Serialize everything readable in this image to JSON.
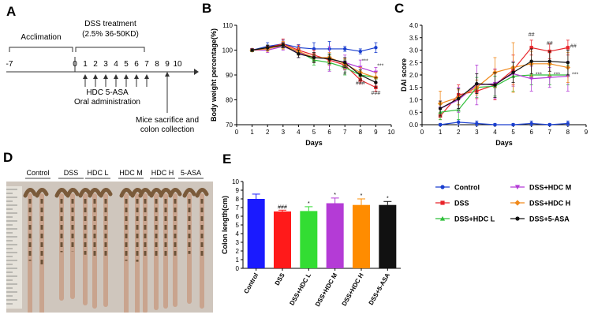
{
  "panels": {
    "A": {
      "letter": "A",
      "acclimation": "Acclimation",
      "dss_title": "DSS treatment",
      "dss_detail": "(2.5% 36-50KD)",
      "day_ticks": [
        "-7",
        "0",
        "1",
        "2",
        "3",
        "4",
        "5",
        "6",
        "7",
        "8",
        "9",
        "10"
      ],
      "arrow_days": [
        1,
        2,
        3,
        4,
        5,
        6,
        7
      ],
      "hdc_label": "HDC 5-ASA",
      "oral_label": "Oral administration",
      "sacrifice_line1": "Mice sacrifice and",
      "sacrifice_line2": "colon collection"
    },
    "D": {
      "letter": "D",
      "group_labels": [
        "Control",
        "DSS",
        "HDC L",
        "HDC M",
        "HDC H",
        "5-ASA"
      ]
    }
  },
  "legend": [
    {
      "label": "Control",
      "color": "#1a3fcf",
      "marker": "circle"
    },
    {
      "label": "DSS+HDC M",
      "color": "#b43bd6",
      "marker": "triangle-down"
    },
    {
      "label": "DSS",
      "color": "#e8242a",
      "marker": "square"
    },
    {
      "label": "DSS+HDC H",
      "color": "#f08a1c",
      "marker": "diamond"
    },
    {
      "label": "DSS+HDC L",
      "color": "#2fbf3a",
      "marker": "triangle-up"
    },
    {
      "label": "DSS+5-ASA",
      "color": "#111111",
      "marker": "circle"
    }
  ],
  "chart_data": [
    {
      "panel": "B",
      "type": "line",
      "ylabel": "Body weight percentage(%)",
      "xlabel": "Days",
      "ylim": [
        70,
        110
      ],
      "yticks": [
        70,
        80,
        90,
        100,
        110
      ],
      "x": [
        1,
        2,
        3,
        4,
        5,
        6,
        7,
        8,
        9
      ],
      "series": [
        {
          "name": "Control",
          "color": "#1a3fcf",
          "values": [
            100,
            101.5,
            102.5,
            101,
            100.5,
            100.5,
            100.5,
            99.5,
            101
          ]
        },
        {
          "name": "DSS",
          "color": "#e8242a",
          "values": [
            100,
            101,
            102.5,
            100,
            98,
            96,
            94,
            88,
            85
          ]
        },
        {
          "name": "DSS+HDC L",
          "color": "#2fbf3a",
          "values": [
            100,
            101,
            101.5,
            99.5,
            96,
            95,
            93,
            90,
            89
          ]
        },
        {
          "name": "DSS+HDC M",
          "color": "#b43bd6",
          "values": [
            100,
            100,
            101.5,
            99,
            97,
            96.5,
            95,
            93,
            91
          ]
        },
        {
          "name": "DSS+HDC H",
          "color": "#f08a1c",
          "values": [
            100,
            100.5,
            102,
            99.5,
            97,
            97,
            94.5,
            91,
            89
          ]
        },
        {
          "name": "DSS+5-ASA",
          "color": "#111111",
          "values": [
            100,
            101,
            102,
            98.5,
            97,
            96.5,
            95,
            90,
            87
          ]
        }
      ],
      "annotations": [
        {
          "text": "#",
          "x": 7,
          "y": 90
        },
        {
          "text": "##",
          "x": 7,
          "y": 92.5
        },
        {
          "text": "###",
          "x": 8,
          "y": 86
        },
        {
          "text": "***",
          "x": 8.3,
          "y": 95
        },
        {
          "text": "***",
          "x": 9.3,
          "y": 93
        },
        {
          "text": "###",
          "x": 9,
          "y": 82
        }
      ]
    },
    {
      "panel": "C",
      "type": "line",
      "ylabel": "DAI score",
      "xlabel": "Days",
      "ylim": [
        0,
        4
      ],
      "yticks": [
        0.0,
        0.5,
        1.0,
        1.5,
        2.0,
        2.5,
        3.0,
        3.5,
        4.0
      ],
      "x": [
        1,
        2,
        3,
        4,
        5,
        6,
        7,
        8
      ],
      "series": [
        {
          "name": "Control",
          "color": "#1a3fcf",
          "values": [
            0,
            0.1,
            0.05,
            0,
            0,
            0.05,
            0,
            0.05
          ]
        },
        {
          "name": "DSS",
          "color": "#e8242a",
          "values": [
            0.35,
            1.2,
            1.35,
            1.6,
            2.2,
            3.1,
            2.95,
            3.1
          ]
        },
        {
          "name": "DSS+HDC L",
          "color": "#2fbf3a",
          "values": [
            0.5,
            0.6,
            1.5,
            1.55,
            1.95,
            2.0,
            2.0,
            2.0
          ]
        },
        {
          "name": "DSS+HDC M",
          "color": "#b43bd6",
          "values": [
            0.65,
            1.0,
            1.6,
            1.65,
            2.05,
            1.85,
            1.9,
            1.95
          ]
        },
        {
          "name": "DSS+HDC H",
          "color": "#f08a1c",
          "values": [
            0.85,
            1.1,
            1.5,
            2.1,
            2.3,
            2.45,
            2.45,
            2.3
          ]
        },
        {
          "name": "DSS+5-ASA",
          "color": "#111111",
          "values": [
            0.65,
            1.05,
            1.65,
            1.6,
            2.1,
            2.55,
            2.55,
            2.5
          ]
        }
      ],
      "annotations": [
        {
          "text": "##",
          "x": 6,
          "y": 3.55
        },
        {
          "text": "##",
          "x": 7,
          "y": 3.2
        },
        {
          "text": "##",
          "x": 8.3,
          "y": 3.1
        },
        {
          "text": "***",
          "x": 6.4,
          "y": 1.95
        },
        {
          "text": "***",
          "x": 7.4,
          "y": 1.95
        },
        {
          "text": "***",
          "x": 8.4,
          "y": 1.95
        }
      ]
    },
    {
      "panel": "E",
      "type": "bar",
      "ylabel": "Colon length(cm)",
      "ylim": [
        0,
        10
      ],
      "yticks": [
        0,
        1,
        2,
        3,
        4,
        5,
        6,
        7,
        8,
        9,
        10
      ],
      "categories": [
        "Control",
        "DSS",
        "DSS+HDC L",
        "DSS+HDC M",
        "DSS+HDC H",
        "DSS+5-ASA"
      ],
      "values": [
        8.0,
        6.55,
        6.6,
        7.5,
        7.3,
        7.3
      ],
      "errors": [
        0.55,
        0.15,
        0.5,
        0.6,
        0.7,
        0.4
      ],
      "colors": [
        "#1a1aff",
        "#ff1a1a",
        "#33dd33",
        "#b43bd6",
        "#ff8c00",
        "#111111"
      ],
      "labels_above": [
        "",
        "###",
        "*",
        "*",
        "*",
        "*"
      ]
    }
  ]
}
